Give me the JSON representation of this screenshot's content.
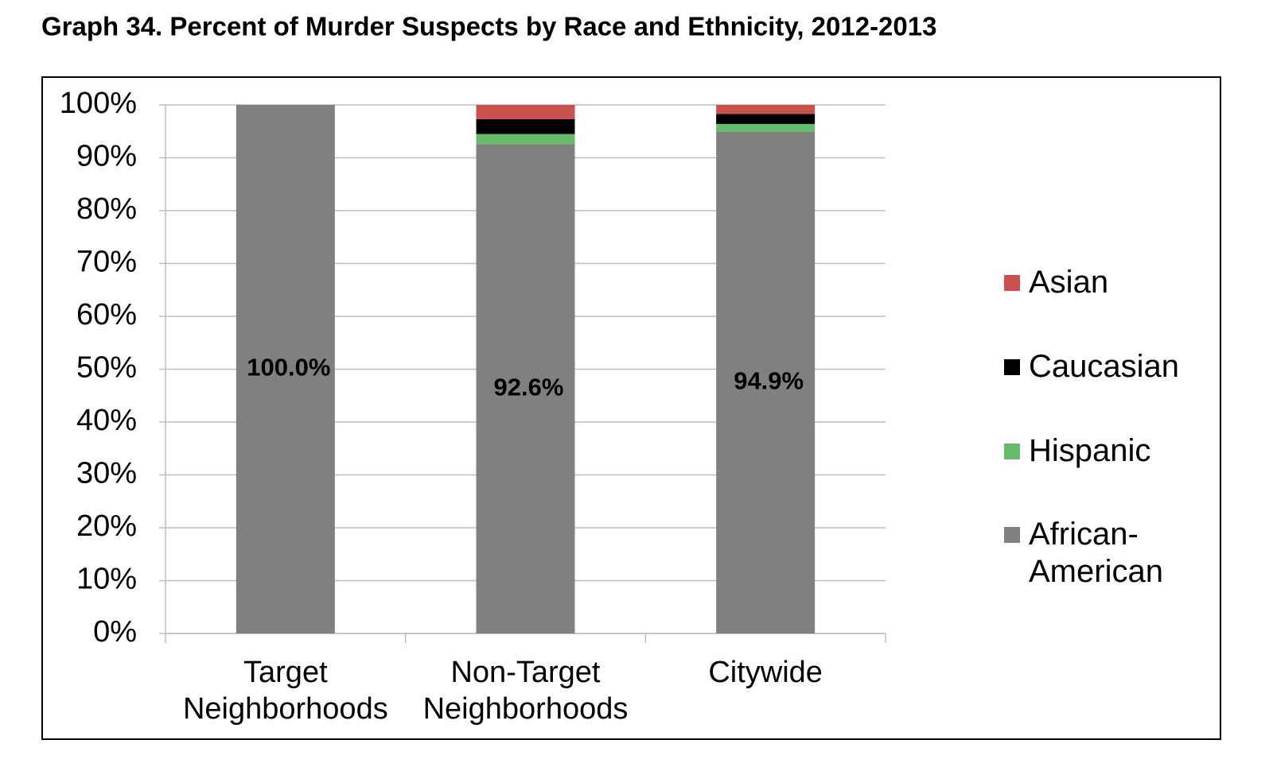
{
  "chart_data": {
    "type": "stacked_bar",
    "title": "Graph 34. Percent of Murder Suspects by Race and Ethnicity, 2012-2013",
    "categories": [
      "Target Neighborhoods",
      "Non-Target Neighborhoods",
      "Citywide"
    ],
    "series": [
      {
        "name": "African-American",
        "color": "#808080",
        "values": [
          100.0,
          92.6,
          94.9
        ],
        "value_labels": [
          "100.0%",
          "92.6%",
          "94.9%"
        ]
      },
      {
        "name": "Hispanic",
        "color": "#66bb6a",
        "values": [
          0,
          1.9,
          1.5
        ]
      },
      {
        "name": "Caucasian",
        "color": "#000000",
        "values": [
          0,
          2.8,
          1.9
        ]
      },
      {
        "name": "Asian",
        "color": "#c9504d",
        "values": [
          0,
          2.7,
          1.7
        ]
      }
    ],
    "ylim": [
      0,
      100
    ],
    "yticks": [
      {
        "value": 0,
        "label": "0%"
      },
      {
        "value": 10,
        "label": "10%"
      },
      {
        "value": 20,
        "label": "20%"
      },
      {
        "value": 30,
        "label": "30%"
      },
      {
        "value": 40,
        "label": "40%"
      },
      {
        "value": 50,
        "label": "50%"
      },
      {
        "value": 60,
        "label": "60%"
      },
      {
        "value": 70,
        "label": "70%"
      },
      {
        "value": 80,
        "label": "80%"
      },
      {
        "value": 90,
        "label": "90%"
      },
      {
        "value": 100,
        "label": "100%"
      }
    ],
    "grid": true,
    "legend": "right"
  }
}
